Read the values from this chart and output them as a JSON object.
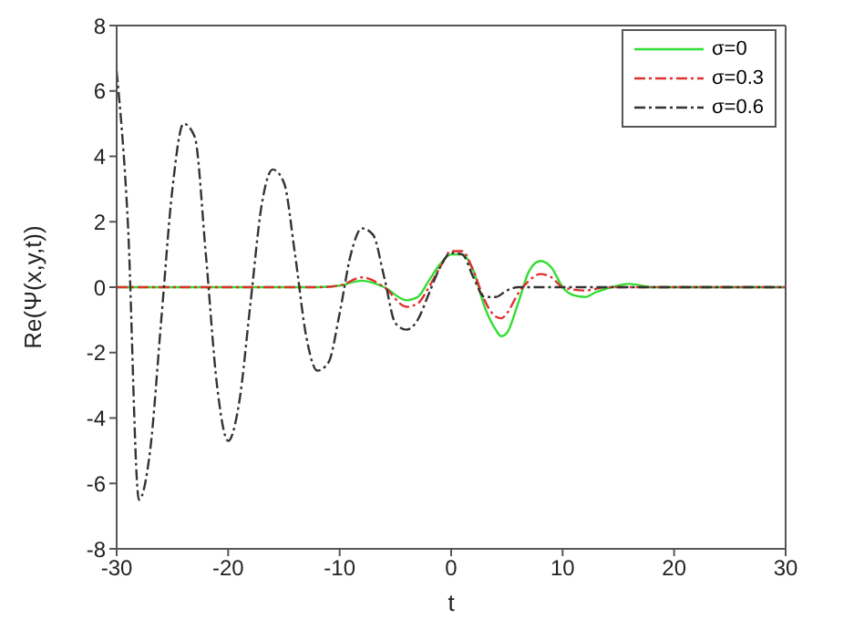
{
  "chart_data": {
    "type": "line",
    "xlabel": "t",
    "ylabel": "Re(Ψ(x,y,t))",
    "xlim": [
      -30,
      30
    ],
    "xticks": [
      -30,
      -20,
      -10,
      0,
      10,
      20,
      30
    ],
    "ylim": [
      -8,
      8
    ],
    "yticks": [
      -8,
      -6,
      -4,
      -2,
      0,
      2,
      4,
      6,
      8
    ],
    "legend": "top right",
    "marker": "none",
    "series": [
      {
        "name": "σ=0",
        "color": "#33dd33",
        "line_style": "solid",
        "x": [
          -30,
          -12,
          -10,
          -8,
          -6,
          -4,
          -3,
          -2,
          -1,
          0,
          1,
          2,
          3,
          4,
          4.5,
          5,
          6,
          7,
          8,
          9,
          10,
          11,
          12,
          13,
          15,
          16,
          18,
          30
        ],
        "values": [
          0,
          0,
          0.05,
          0.2,
          0,
          -0.4,
          -0.3,
          0.2,
          0.7,
          1.0,
          1.0,
          0.5,
          -0.6,
          -1.3,
          -1.5,
          -1.4,
          -0.5,
          0.5,
          0.8,
          0.6,
          0,
          -0.25,
          -0.3,
          -0.15,
          0.05,
          0.1,
          0,
          0
        ]
      },
      {
        "name": "σ=0.3",
        "color": "#e03030",
        "line_style": "dashed",
        "x": [
          -30,
          -12,
          -10,
          -8,
          -6,
          -4,
          -3,
          -2,
          -1,
          0,
          1,
          2,
          3,
          4,
          4.5,
          5,
          6,
          7,
          8,
          9,
          10,
          12,
          14,
          30
        ],
        "values": [
          0,
          0,
          0.05,
          0.3,
          0,
          -0.6,
          -0.5,
          0,
          0.6,
          1.1,
          1.1,
          0.5,
          -0.4,
          -0.9,
          -0.95,
          -0.8,
          -0.2,
          0.2,
          0.4,
          0.3,
          0,
          -0.1,
          0,
          0
        ]
      },
      {
        "name": "σ=0.6",
        "color": "#333333",
        "line_style": "dashed",
        "x": [
          -30,
          -29,
          -28,
          -27,
          -26,
          -25,
          -24,
          -23,
          -22,
          -21,
          -20,
          -19,
          -18,
          -17,
          -16,
          -15,
          -14,
          -13,
          -12,
          -11,
          -10,
          -9,
          -8,
          -7,
          -6,
          -5,
          -4,
          -3,
          -2,
          -1,
          0,
          1,
          2,
          3,
          4,
          5,
          6,
          10,
          20,
          30
        ],
        "values": [
          6.6,
          2,
          -6.5,
          -5,
          -1,
          3,
          5.0,
          4.6,
          1,
          -3,
          -4.7,
          -3.5,
          -0.5,
          2.5,
          3.6,
          3.2,
          1,
          -1.5,
          -2.55,
          -2.3,
          -0.8,
          1,
          1.8,
          1.6,
          0.3,
          -1.1,
          -1.3,
          -1,
          -0.2,
          0.6,
          1.05,
          1.0,
          0.3,
          -0.3,
          -0.3,
          -0.1,
          0,
          0,
          0,
          0
        ]
      }
    ]
  }
}
